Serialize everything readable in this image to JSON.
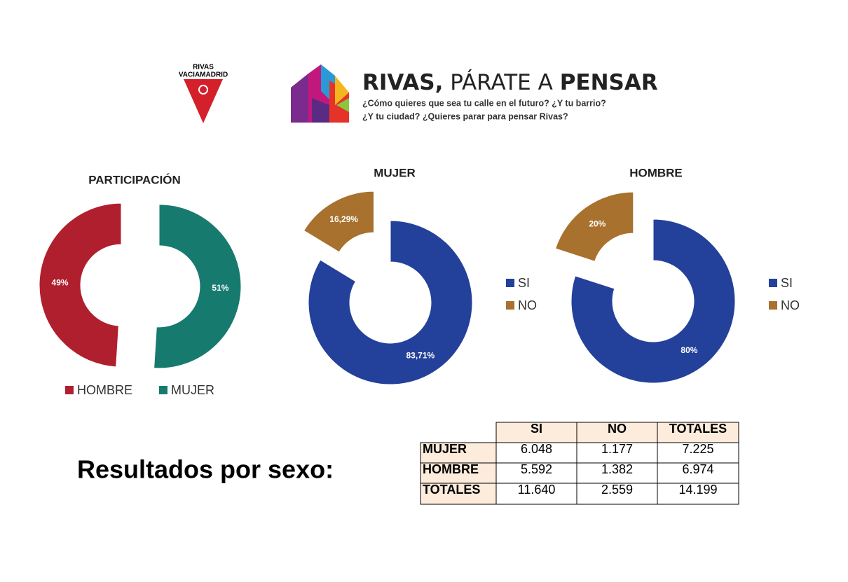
{
  "header": {
    "logo_top": "RIVAS",
    "logo_bottom": "VACIAMADRID",
    "title": {
      "lead": "RIVAS,",
      "middle": "PÁRATE A",
      "end": "PENSAR"
    },
    "subtitle": [
      "¿Cómo quieres que sea tu calle en el futuro? ¿Y tu barrio?",
      "¿Y tu ciudad? ¿Quieres parar para pensar Rivas?"
    ]
  },
  "chart_data": [
    {
      "type": "pie",
      "title": "PARTICIPACIÓN",
      "categories": [
        "HOMBRE",
        "MUJER"
      ],
      "values": [
        49,
        51
      ],
      "value_labels": [
        "49%",
        "51%"
      ],
      "colors": [
        "#b01f2e",
        "#177a6f"
      ]
    },
    {
      "type": "pie",
      "title": "MUJER",
      "categories": [
        "SI",
        "NO"
      ],
      "values": [
        83.71,
        16.29
      ],
      "value_labels": [
        "83,71%",
        "16,29%"
      ],
      "colors": [
        "#23409a",
        "#a8712e"
      ]
    },
    {
      "type": "pie",
      "title": "HOMBRE",
      "categories": [
        "SI",
        "NO"
      ],
      "values": [
        80,
        20
      ],
      "value_labels": [
        "80%",
        "20%"
      ],
      "colors": [
        "#23409a",
        "#a8712e"
      ]
    }
  ],
  "heading": "Resultados por sexo:",
  "table": {
    "columns": [
      "SI",
      "NO",
      "TOTALES"
    ],
    "rows": [
      {
        "label": "MUJER",
        "cells": [
          "6.048",
          "1.177",
          "7.225"
        ]
      },
      {
        "label": "HOMBRE",
        "cells": [
          "5.592",
          "1.382",
          "6.974"
        ]
      },
      {
        "label": "TOTALES",
        "cells": [
          "11.640",
          "2.559",
          "14.199"
        ]
      }
    ]
  }
}
